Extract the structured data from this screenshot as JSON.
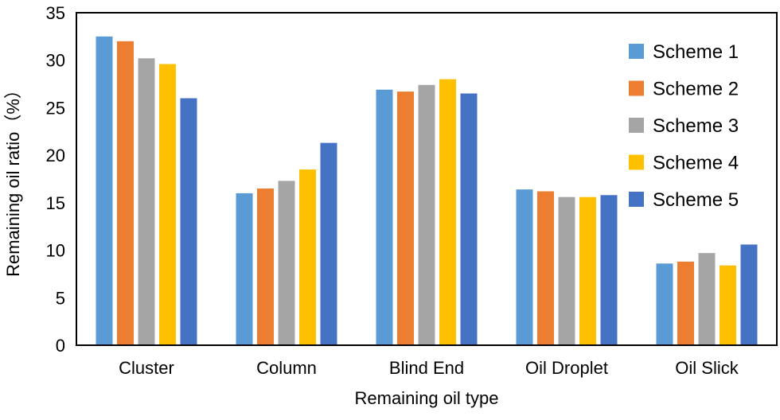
{
  "chart_data": {
    "type": "bar",
    "title": "",
    "xlabel": "Remaining oil type",
    "ylabel": "Remaining oil ratio（%）",
    "ylim": [
      0,
      35
    ],
    "yticks": [
      "0",
      "5",
      "10",
      "15",
      "20",
      "25",
      "30",
      "35"
    ],
    "categories": [
      "Cluster",
      "Column",
      "Blind End",
      "Oil Droplet",
      "Oil Slick"
    ],
    "grid": false,
    "legend_position": "top-right",
    "series": [
      {
        "name": "Scheme 1",
        "color": "#5b9bd5",
        "values": [
          32.5,
          16.0,
          26.9,
          16.4,
          8.6
        ]
      },
      {
        "name": "Scheme 2",
        "color": "#ed7d31",
        "values": [
          32.0,
          16.5,
          26.7,
          16.2,
          8.8
        ]
      },
      {
        "name": "Scheme 3",
        "color": "#a5a5a5",
        "values": [
          30.2,
          17.3,
          27.4,
          15.6,
          9.7
        ]
      },
      {
        "name": "Scheme 4",
        "color": "#ffc000",
        "values": [
          29.6,
          18.5,
          28.0,
          15.6,
          8.4
        ]
      },
      {
        "name": "Scheme 5",
        "color": "#4472c4",
        "values": [
          26.0,
          21.3,
          26.5,
          15.8,
          10.6
        ]
      }
    ]
  }
}
